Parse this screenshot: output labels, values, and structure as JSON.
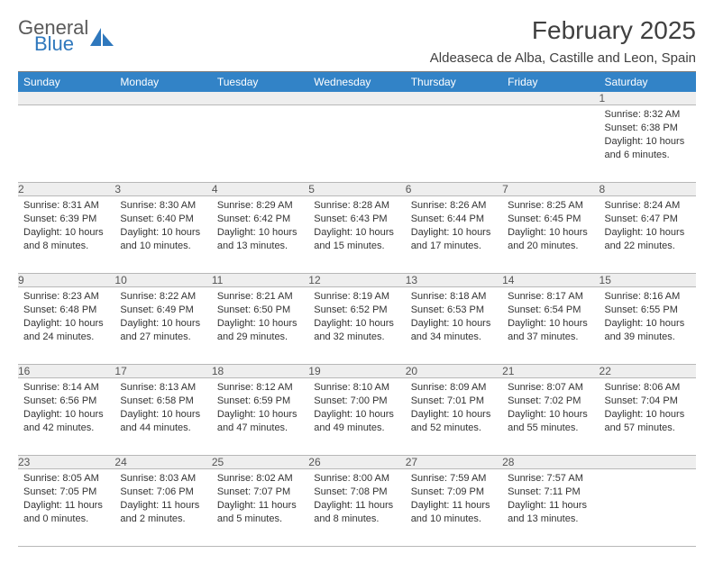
{
  "logo": {
    "general": "General",
    "blue": "Blue"
  },
  "header": {
    "month_title": "February 2025",
    "location": "Aldeaseca de Alba, Castille and Leon, Spain"
  },
  "colors": {
    "header_bg": "#3283c7",
    "header_text": "#ffffff",
    "daynum_bg": "#eeeeee",
    "border": "#b8b8b8",
    "logo_blue": "#2f78bd"
  },
  "weekdays": [
    "Sunday",
    "Monday",
    "Tuesday",
    "Wednesday",
    "Thursday",
    "Friday",
    "Saturday"
  ],
  "weeks": [
    [
      null,
      null,
      null,
      null,
      null,
      null,
      {
        "n": "1",
        "sunrise": "Sunrise: 8:32 AM",
        "sunset": "Sunset: 6:38 PM",
        "daylight": "Daylight: 10 hours and 6 minutes."
      }
    ],
    [
      {
        "n": "2",
        "sunrise": "Sunrise: 8:31 AM",
        "sunset": "Sunset: 6:39 PM",
        "daylight": "Daylight: 10 hours and 8 minutes."
      },
      {
        "n": "3",
        "sunrise": "Sunrise: 8:30 AM",
        "sunset": "Sunset: 6:40 PM",
        "daylight": "Daylight: 10 hours and 10 minutes."
      },
      {
        "n": "4",
        "sunrise": "Sunrise: 8:29 AM",
        "sunset": "Sunset: 6:42 PM",
        "daylight": "Daylight: 10 hours and 13 minutes."
      },
      {
        "n": "5",
        "sunrise": "Sunrise: 8:28 AM",
        "sunset": "Sunset: 6:43 PM",
        "daylight": "Daylight: 10 hours and 15 minutes."
      },
      {
        "n": "6",
        "sunrise": "Sunrise: 8:26 AM",
        "sunset": "Sunset: 6:44 PM",
        "daylight": "Daylight: 10 hours and 17 minutes."
      },
      {
        "n": "7",
        "sunrise": "Sunrise: 8:25 AM",
        "sunset": "Sunset: 6:45 PM",
        "daylight": "Daylight: 10 hours and 20 minutes."
      },
      {
        "n": "8",
        "sunrise": "Sunrise: 8:24 AM",
        "sunset": "Sunset: 6:47 PM",
        "daylight": "Daylight: 10 hours and 22 minutes."
      }
    ],
    [
      {
        "n": "9",
        "sunrise": "Sunrise: 8:23 AM",
        "sunset": "Sunset: 6:48 PM",
        "daylight": "Daylight: 10 hours and 24 minutes."
      },
      {
        "n": "10",
        "sunrise": "Sunrise: 8:22 AM",
        "sunset": "Sunset: 6:49 PM",
        "daylight": "Daylight: 10 hours and 27 minutes."
      },
      {
        "n": "11",
        "sunrise": "Sunrise: 8:21 AM",
        "sunset": "Sunset: 6:50 PM",
        "daylight": "Daylight: 10 hours and 29 minutes."
      },
      {
        "n": "12",
        "sunrise": "Sunrise: 8:19 AM",
        "sunset": "Sunset: 6:52 PM",
        "daylight": "Daylight: 10 hours and 32 minutes."
      },
      {
        "n": "13",
        "sunrise": "Sunrise: 8:18 AM",
        "sunset": "Sunset: 6:53 PM",
        "daylight": "Daylight: 10 hours and 34 minutes."
      },
      {
        "n": "14",
        "sunrise": "Sunrise: 8:17 AM",
        "sunset": "Sunset: 6:54 PM",
        "daylight": "Daylight: 10 hours and 37 minutes."
      },
      {
        "n": "15",
        "sunrise": "Sunrise: 8:16 AM",
        "sunset": "Sunset: 6:55 PM",
        "daylight": "Daylight: 10 hours and 39 minutes."
      }
    ],
    [
      {
        "n": "16",
        "sunrise": "Sunrise: 8:14 AM",
        "sunset": "Sunset: 6:56 PM",
        "daylight": "Daylight: 10 hours and 42 minutes."
      },
      {
        "n": "17",
        "sunrise": "Sunrise: 8:13 AM",
        "sunset": "Sunset: 6:58 PM",
        "daylight": "Daylight: 10 hours and 44 minutes."
      },
      {
        "n": "18",
        "sunrise": "Sunrise: 8:12 AM",
        "sunset": "Sunset: 6:59 PM",
        "daylight": "Daylight: 10 hours and 47 minutes."
      },
      {
        "n": "19",
        "sunrise": "Sunrise: 8:10 AM",
        "sunset": "Sunset: 7:00 PM",
        "daylight": "Daylight: 10 hours and 49 minutes."
      },
      {
        "n": "20",
        "sunrise": "Sunrise: 8:09 AM",
        "sunset": "Sunset: 7:01 PM",
        "daylight": "Daylight: 10 hours and 52 minutes."
      },
      {
        "n": "21",
        "sunrise": "Sunrise: 8:07 AM",
        "sunset": "Sunset: 7:02 PM",
        "daylight": "Daylight: 10 hours and 55 minutes."
      },
      {
        "n": "22",
        "sunrise": "Sunrise: 8:06 AM",
        "sunset": "Sunset: 7:04 PM",
        "daylight": "Daylight: 10 hours and 57 minutes."
      }
    ],
    [
      {
        "n": "23",
        "sunrise": "Sunrise: 8:05 AM",
        "sunset": "Sunset: 7:05 PM",
        "daylight": "Daylight: 11 hours and 0 minutes."
      },
      {
        "n": "24",
        "sunrise": "Sunrise: 8:03 AM",
        "sunset": "Sunset: 7:06 PM",
        "daylight": "Daylight: 11 hours and 2 minutes."
      },
      {
        "n": "25",
        "sunrise": "Sunrise: 8:02 AM",
        "sunset": "Sunset: 7:07 PM",
        "daylight": "Daylight: 11 hours and 5 minutes."
      },
      {
        "n": "26",
        "sunrise": "Sunrise: 8:00 AM",
        "sunset": "Sunset: 7:08 PM",
        "daylight": "Daylight: 11 hours and 8 minutes."
      },
      {
        "n": "27",
        "sunrise": "Sunrise: 7:59 AM",
        "sunset": "Sunset: 7:09 PM",
        "daylight": "Daylight: 11 hours and 10 minutes."
      },
      {
        "n": "28",
        "sunrise": "Sunrise: 7:57 AM",
        "sunset": "Sunset: 7:11 PM",
        "daylight": "Daylight: 11 hours and 13 minutes."
      },
      null
    ]
  ]
}
